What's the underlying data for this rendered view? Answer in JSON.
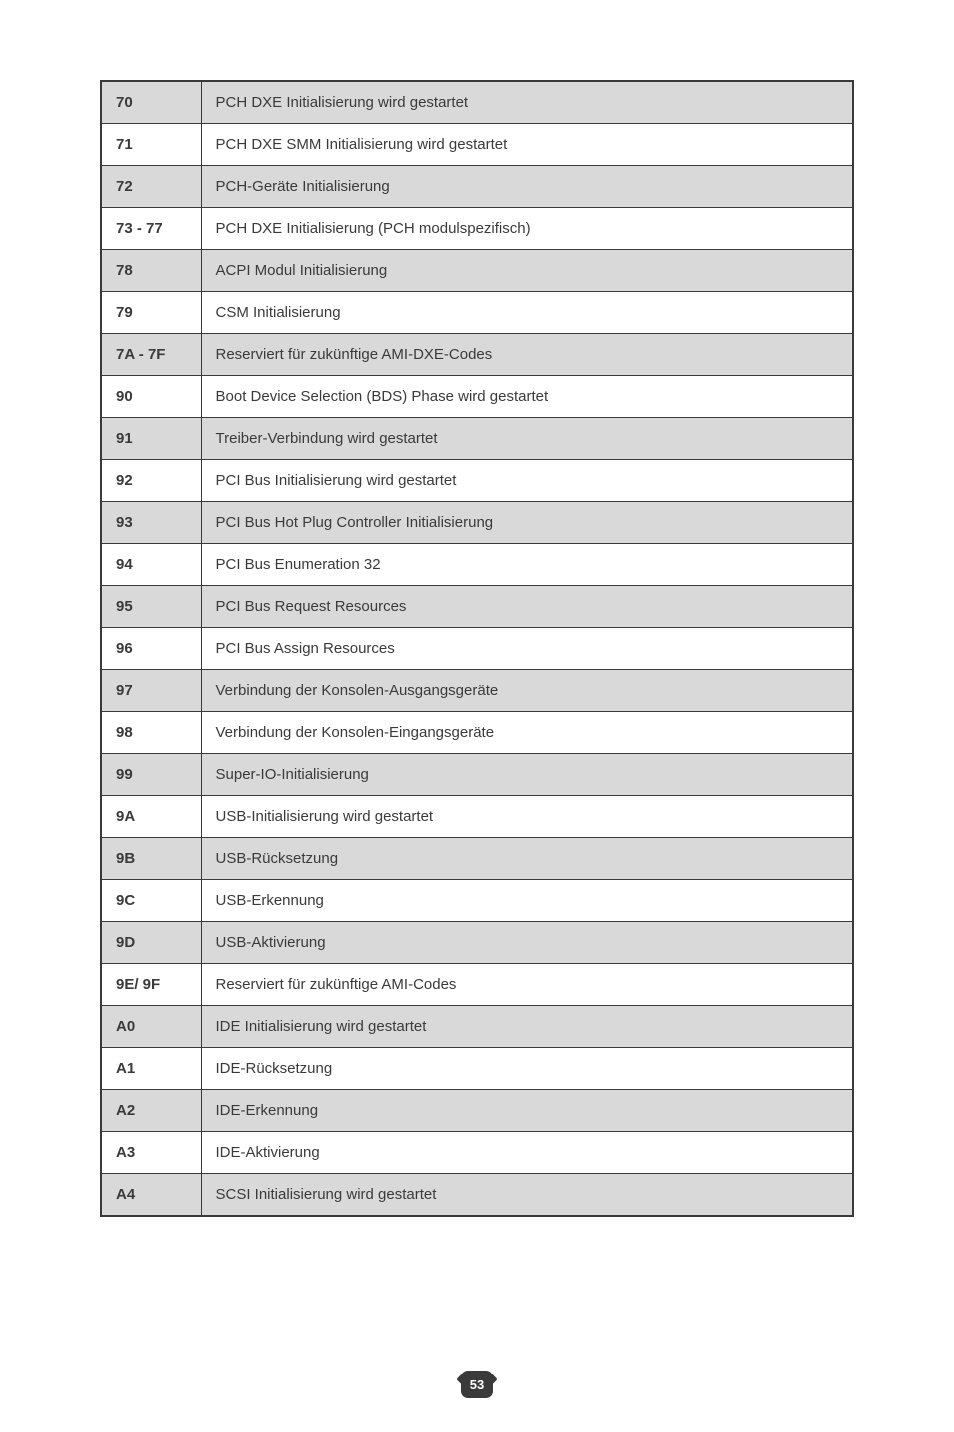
{
  "page_number": "53",
  "rows": [
    {
      "code": "70",
      "desc": "PCH DXE Initialisierung wird gestartet",
      "shaded": true
    },
    {
      "code": "71",
      "desc": "PCH DXE SMM Initialisierung wird gestartet",
      "shaded": false
    },
    {
      "code": "72",
      "desc": "PCH-Geräte Initialisierung",
      "shaded": true
    },
    {
      "code": "73 - 77",
      "desc": "PCH DXE Initialisierung (PCH modulspezifisch)",
      "shaded": false
    },
    {
      "code": "78",
      "desc": "ACPI Modul Initialisierung",
      "shaded": true
    },
    {
      "code": "79",
      "desc": "CSM Initialisierung",
      "shaded": false
    },
    {
      "code": "7A - 7F",
      "desc": "Reserviert für zukünftige AMI-DXE-Codes",
      "shaded": true
    },
    {
      "code": "90",
      "desc": "Boot Device Selection (BDS) Phase wird gestartet",
      "shaded": false
    },
    {
      "code": "91",
      "desc": "Treiber-Verbindung wird gestartet",
      "shaded": true
    },
    {
      "code": "92",
      "desc": "PCI Bus Initialisierung wird gestartet",
      "shaded": false
    },
    {
      "code": "93",
      "desc": "PCI Bus Hot Plug Controller Initialisierung",
      "shaded": true
    },
    {
      "code": "94",
      "desc": "PCI Bus Enumeration 32",
      "shaded": false
    },
    {
      "code": "95",
      "desc": "PCI Bus Request Resources",
      "shaded": true
    },
    {
      "code": "96",
      "desc": "PCI Bus Assign Resources",
      "shaded": false
    },
    {
      "code": "97",
      "desc": "Verbindung der Konsolen-Ausgangsgeräte",
      "shaded": true
    },
    {
      "code": "98",
      "desc": "Verbindung der Konsolen-Eingangsgeräte",
      "shaded": false
    },
    {
      "code": "99",
      "desc": "Super-IO-Initialisierung",
      "shaded": true
    },
    {
      "code": "9A",
      "desc": "USB-Initialisierung wird gestartet",
      "shaded": false
    },
    {
      "code": "9B",
      "desc": "USB-Rücksetzung",
      "shaded": true
    },
    {
      "code": "9C",
      "desc": "USB-Erkennung",
      "shaded": false
    },
    {
      "code": "9D",
      "desc": "USB-Aktivierung",
      "shaded": true
    },
    {
      "code": "9E/ 9F",
      "desc": "Reserviert für zukünftige AMI-Codes",
      "shaded": false
    },
    {
      "code": "A0",
      "desc": "IDE Initialisierung wird gestartet",
      "shaded": true
    },
    {
      "code": "A1",
      "desc": "IDE-Rücksetzung",
      "shaded": false
    },
    {
      "code": "A2",
      "desc": "IDE-Erkennung",
      "shaded": true
    },
    {
      "code": "A3",
      "desc": "IDE-Aktivierung",
      "shaded": false
    },
    {
      "code": "A4",
      "desc": "SCSI Initialisierung wird gestartet",
      "shaded": true
    }
  ]
}
